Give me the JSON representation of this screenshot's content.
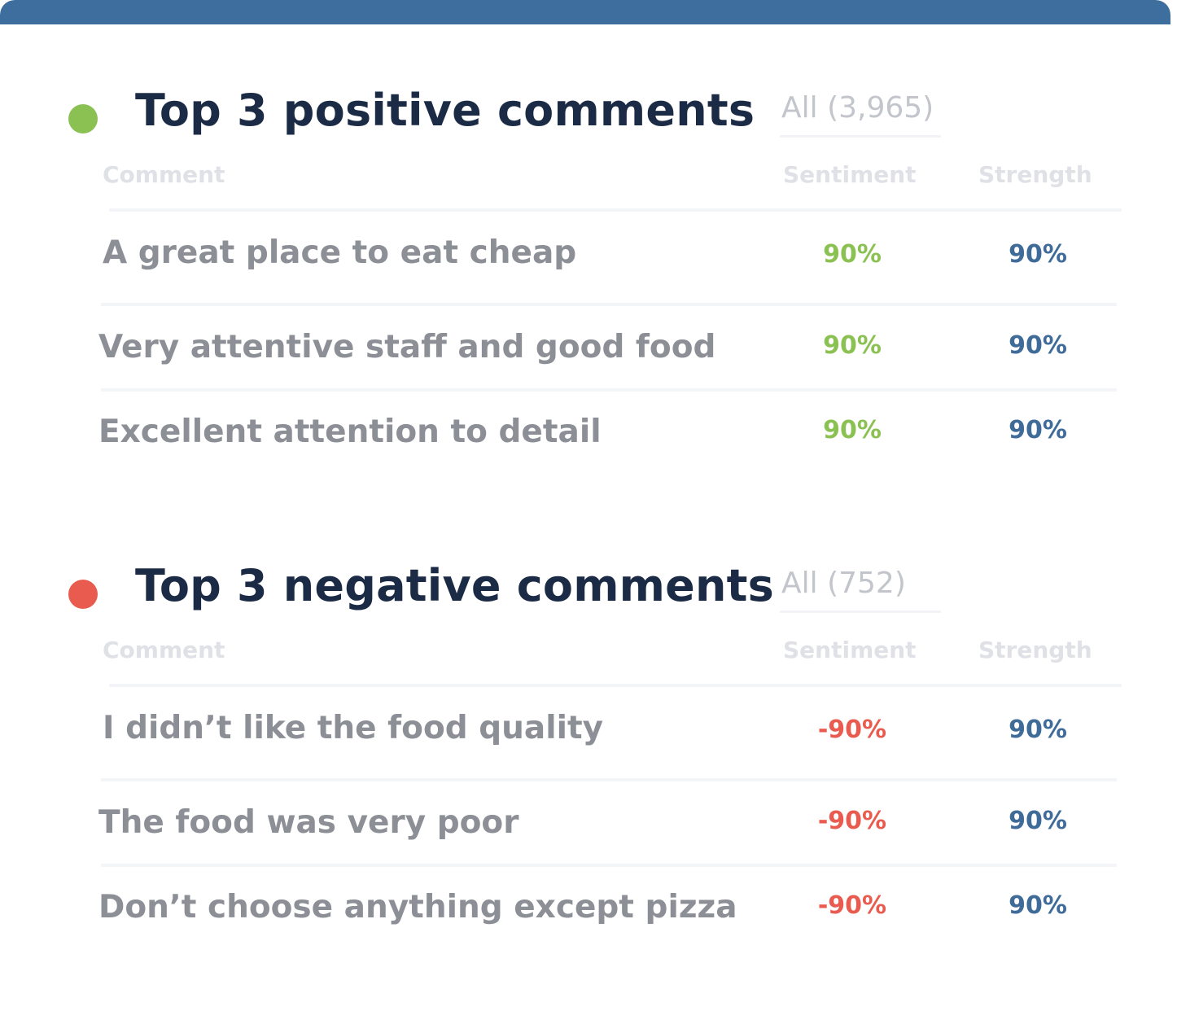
{
  "colors": {
    "positive": "#8bc152",
    "negative": "#ea5b4f",
    "strength": "#3e6b98",
    "accent_bar": "#3d6e9e"
  },
  "positive": {
    "title": "Top 3 positive comments",
    "count_link": "All (3,965)",
    "headers": {
      "comment": "Comment",
      "sentiment": "Sentiment",
      "strength": "Strength"
    },
    "rows": [
      {
        "comment": "A great place to eat cheap",
        "sentiment": "90%",
        "strength": "90%"
      },
      {
        "comment": "Very attentive staff and good food",
        "sentiment": "90%",
        "strength": "90%"
      },
      {
        "comment": "Excellent attention to detail",
        "sentiment": "90%",
        "strength": "90%"
      }
    ]
  },
  "negative": {
    "title": "Top 3 negative comments",
    "count_link": "All (752)",
    "headers": {
      "comment": "Comment",
      "sentiment": "Sentiment",
      "strength": "Strength"
    },
    "rows": [
      {
        "comment": "I didn’t like the food quality",
        "sentiment": "-90%",
        "strength": "90%"
      },
      {
        "comment": "The food was very poor",
        "sentiment": "-90%",
        "strength": "90%"
      },
      {
        "comment": "Don’t choose anything except pizza",
        "sentiment": "-90%",
        "strength": "90%"
      }
    ]
  }
}
